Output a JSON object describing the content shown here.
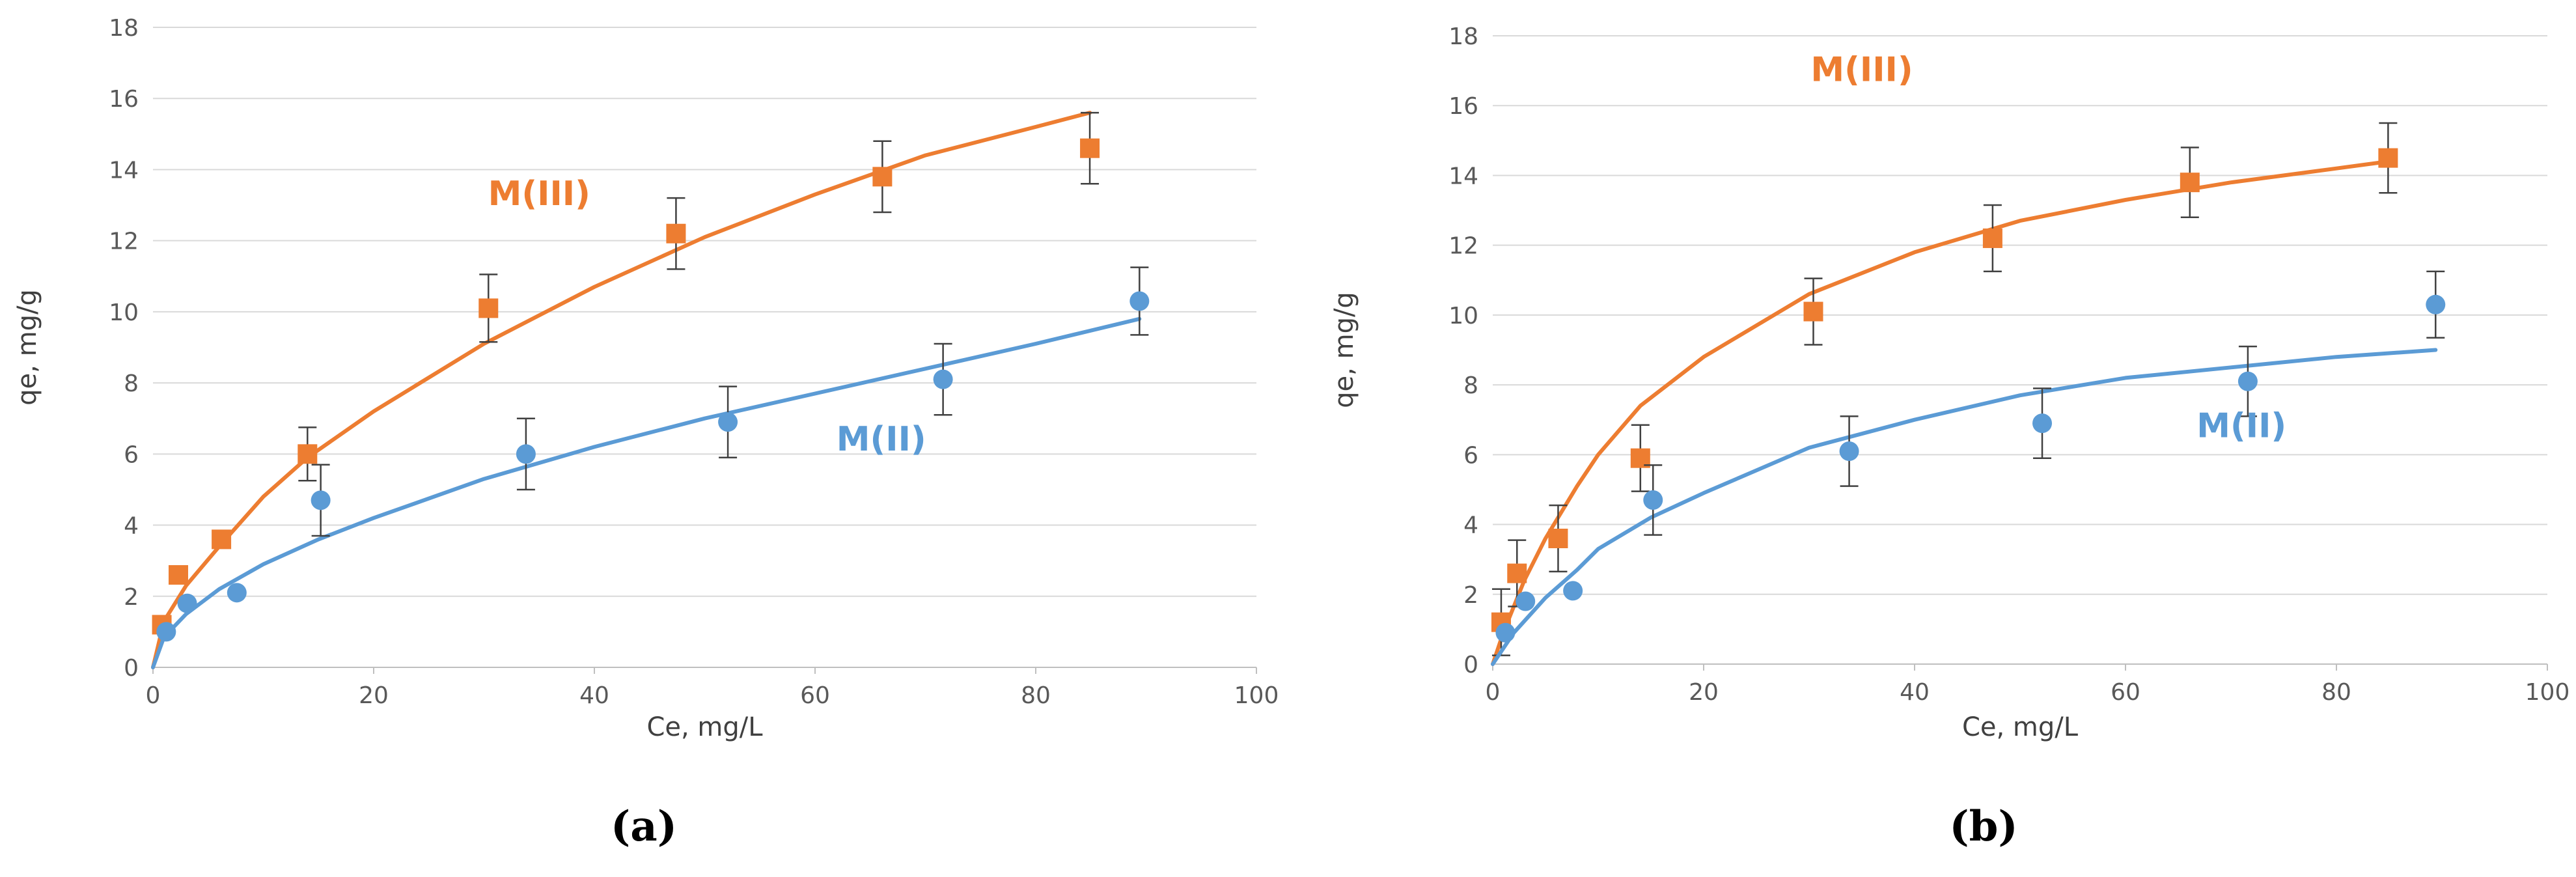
{
  "chart_data": [
    {
      "type": "scatter",
      "caption": "(a)",
      "xlabel": "Ce, mg/L",
      "ylabel": "qe, mg/g",
      "xlim": [
        0,
        100
      ],
      "ylim": [
        0,
        18
      ],
      "xticks": [
        "0",
        "20",
        "40",
        "60",
        "80",
        "100"
      ],
      "yticks": [
        "0",
        "2",
        "4",
        "6",
        "8",
        "10",
        "12",
        "14",
        "16",
        "18"
      ],
      "grid": "horizontal",
      "series": [
        {
          "name": "M(III)",
          "color": "#ED7D31",
          "marker": "square",
          "points": [
            {
              "x": 0.8,
              "y": 1.2,
              "err": 0
            },
            {
              "x": 2.3,
              "y": 2.6,
              "err": 0
            },
            {
              "x": 6.2,
              "y": 3.6,
              "err": 0
            },
            {
              "x": 14.0,
              "y": 6.0,
              "err": 0.75
            },
            {
              "x": 30.4,
              "y": 10.1,
              "err": 0.95
            },
            {
              "x": 47.4,
              "y": 12.2,
              "err": 1.0
            },
            {
              "x": 66.1,
              "y": 13.8,
              "err": 1.0
            },
            {
              "x": 84.9,
              "y": 14.6,
              "err": 1.0
            }
          ],
          "fit": [
            [
              0,
              0
            ],
            [
              1,
              1.3
            ],
            [
              3,
              2.3
            ],
            [
              6,
              3.4
            ],
            [
              10,
              4.8
            ],
            [
              14,
              5.9
            ],
            [
              20,
              7.2
            ],
            [
              30,
              9.1
            ],
            [
              40,
              10.7
            ],
            [
              50,
              12.1
            ],
            [
              60,
              13.3
            ],
            [
              70,
              14.4
            ],
            [
              80,
              15.2
            ],
            [
              84.9,
              15.6
            ]
          ],
          "label_pos": {
            "x": 35,
            "y": 13.0
          }
        },
        {
          "name": "M(II)",
          "color": "#5B9BD5",
          "marker": "circle",
          "points": [
            {
              "x": 1.2,
              "y": 1.0,
              "err": 0
            },
            {
              "x": 3.1,
              "y": 1.8,
              "err": 0
            },
            {
              "x": 7.6,
              "y": 2.1,
              "err": 0
            },
            {
              "x": 15.2,
              "y": 4.7,
              "err": 1.0
            },
            {
              "x": 33.8,
              "y": 6.0,
              "err": 1.0
            },
            {
              "x": 52.1,
              "y": 6.9,
              "err": 1.0
            },
            {
              "x": 71.6,
              "y": 8.1,
              "err": 1.0
            },
            {
              "x": 89.4,
              "y": 10.3,
              "err": 0.95
            }
          ],
          "fit": [
            [
              0,
              0
            ],
            [
              1,
              0.85
            ],
            [
              3,
              1.5
            ],
            [
              6,
              2.2
            ],
            [
              10,
              2.9
            ],
            [
              15,
              3.6
            ],
            [
              20,
              4.2
            ],
            [
              30,
              5.3
            ],
            [
              40,
              6.2
            ],
            [
              50,
              7.0
            ],
            [
              60,
              7.7
            ],
            [
              70,
              8.4
            ],
            [
              80,
              9.1
            ],
            [
              89.4,
              9.8
            ]
          ],
          "label_pos": {
            "x": 66,
            "y": 6.1
          }
        }
      ]
    },
    {
      "type": "scatter",
      "caption": "(b)",
      "xlabel": "Ce, mg/L",
      "ylabel": "qe, mg/g",
      "xlim": [
        0,
        100
      ],
      "ylim": [
        0,
        18
      ],
      "xticks": [
        "0",
        "20",
        "40",
        "60",
        "80",
        "100"
      ],
      "yticks": [
        "0",
        "2",
        "4",
        "6",
        "8",
        "10",
        "12",
        "14",
        "16",
        "18"
      ],
      "grid": "horizontal",
      "series": [
        {
          "name": "M(III)",
          "color": "#ED7D31",
          "marker": "square",
          "points": [
            {
              "x": 0.8,
              "y": 1.2,
              "err": 0.95
            },
            {
              "x": 2.3,
              "y": 2.6,
              "err": 0.95
            },
            {
              "x": 6.2,
              "y": 3.6,
              "err": 0.95
            },
            {
              "x": 14.0,
              "y": 5.9,
              "err": 0.95
            },
            {
              "x": 30.4,
              "y": 10.1,
              "err": 0.95
            },
            {
              "x": 47.4,
              "y": 12.2,
              "err": 0.95
            },
            {
              "x": 66.1,
              "y": 13.8,
              "err": 1.0
            },
            {
              "x": 84.9,
              "y": 14.5,
              "err": 1.0
            }
          ],
          "fit": [
            [
              0,
              0
            ],
            [
              1,
              0.9
            ],
            [
              3,
              2.4
            ],
            [
              5,
              3.6
            ],
            [
              8,
              5.1
            ],
            [
              10,
              6.0
            ],
            [
              14,
              7.4
            ],
            [
              20,
              8.8
            ],
            [
              30,
              10.6
            ],
            [
              40,
              11.8
            ],
            [
              50,
              12.7
            ],
            [
              60,
              13.3
            ],
            [
              70,
              13.8
            ],
            [
              80,
              14.2
            ],
            [
              84.9,
              14.4
            ]
          ],
          "label_pos": {
            "x": 35,
            "y": 16.7
          }
        },
        {
          "name": "M(II)",
          "color": "#5B9BD5",
          "marker": "circle",
          "points": [
            {
              "x": 1.2,
              "y": 0.9,
              "err": 0
            },
            {
              "x": 3.1,
              "y": 1.8,
              "err": 0
            },
            {
              "x": 7.6,
              "y": 2.1,
              "err": 0
            },
            {
              "x": 15.2,
              "y": 4.7,
              "err": 1.0
            },
            {
              "x": 33.8,
              "y": 6.1,
              "err": 1.0
            },
            {
              "x": 52.1,
              "y": 6.9,
              "err": 1.0
            },
            {
              "x": 71.6,
              "y": 8.1,
              "err": 1.0
            },
            {
              "x": 89.4,
              "y": 10.3,
              "err": 0.95
            }
          ],
          "fit": [
            [
              0,
              0
            ],
            [
              2,
              0.9
            ],
            [
              5,
              1.9
            ],
            [
              8,
              2.7
            ],
            [
              10,
              3.3
            ],
            [
              15,
              4.2
            ],
            [
              20,
              4.9
            ],
            [
              30,
              6.2
            ],
            [
              40,
              7.0
            ],
            [
              50,
              7.7
            ],
            [
              60,
              8.2
            ],
            [
              70,
              8.5
            ],
            [
              80,
              8.8
            ],
            [
              89.4,
              9.0
            ]
          ],
          "label_pos": {
            "x": 71,
            "y": 6.5
          }
        }
      ]
    }
  ]
}
